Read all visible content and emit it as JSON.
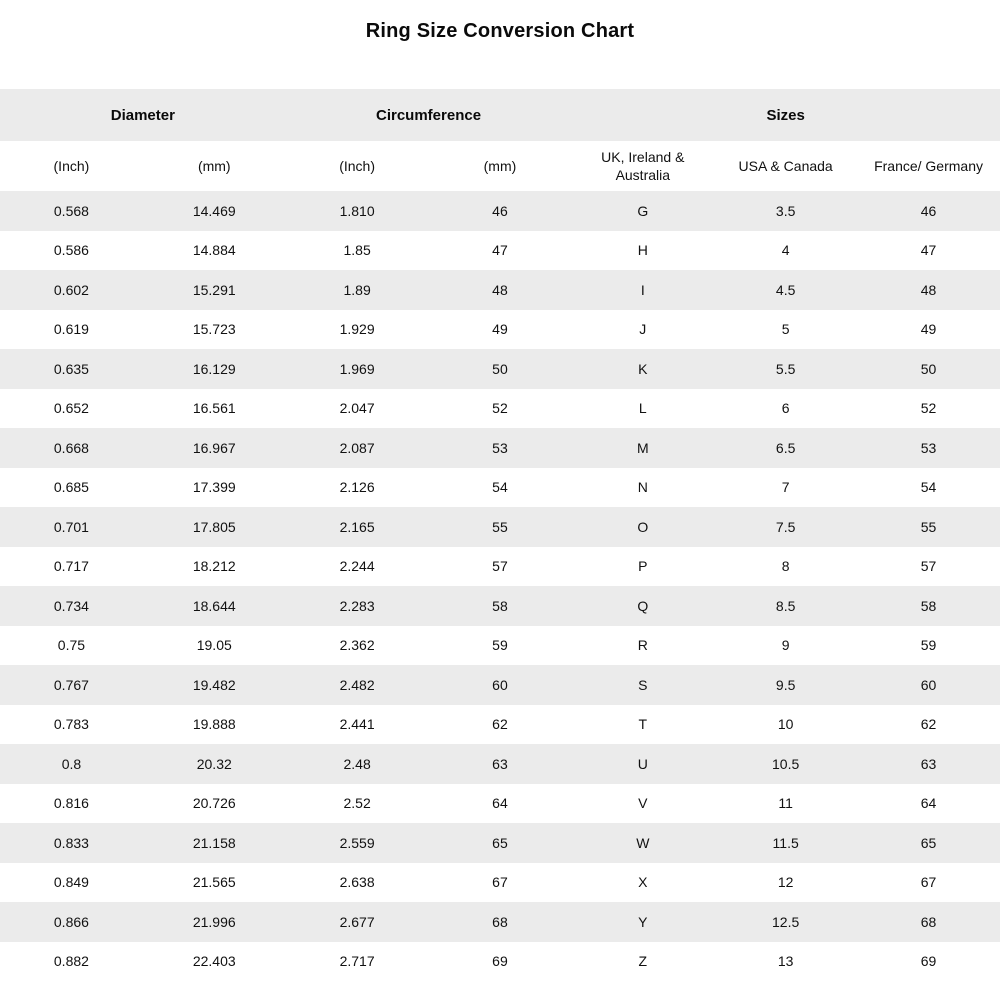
{
  "title": "Ring Size Conversion Chart",
  "colors": {
    "stripe_gray": "#ebebeb",
    "background": "#ffffff",
    "text": "#111111"
  },
  "chart_data": {
    "type": "table",
    "title": "Ring Size Conversion Chart",
    "group_headers": [
      {
        "label": "Diameter",
        "span": 2
      },
      {
        "label": "Circumference",
        "span": 2
      },
      {
        "label": "Sizes",
        "span": 3
      }
    ],
    "columns": [
      "(Inch)",
      "(mm)",
      "(Inch)",
      "(mm)",
      "UK, Ireland & Australia",
      "USA & Canada",
      "France/ Germany"
    ],
    "rows": [
      [
        "0.568",
        "14.469",
        "1.810",
        "46",
        "G",
        "3.5",
        "46"
      ],
      [
        "0.586",
        "14.884",
        "1.85",
        "47",
        "H",
        "4",
        "47"
      ],
      [
        "0.602",
        "15.291",
        "1.89",
        "48",
        "I",
        "4.5",
        "48"
      ],
      [
        "0.619",
        "15.723",
        "1.929",
        "49",
        "J",
        "5",
        "49"
      ],
      [
        "0.635",
        "16.129",
        "1.969",
        "50",
        "K",
        "5.5",
        "50"
      ],
      [
        "0.652",
        "16.561",
        "2.047",
        "52",
        "L",
        "6",
        "52"
      ],
      [
        "0.668",
        "16.967",
        "2.087",
        "53",
        "M",
        "6.5",
        "53"
      ],
      [
        "0.685",
        "17.399",
        "2.126",
        "54",
        "N",
        "7",
        "54"
      ],
      [
        "0.701",
        "17.805",
        "2.165",
        "55",
        "O",
        "7.5",
        "55"
      ],
      [
        "0.717",
        "18.212",
        "2.244",
        "57",
        "P",
        "8",
        "57"
      ],
      [
        "0.734",
        "18.644",
        "2.283",
        "58",
        "Q",
        "8.5",
        "58"
      ],
      [
        "0.75",
        "19.05",
        "2.362",
        "59",
        "R",
        "9",
        "59"
      ],
      [
        "0.767",
        "19.482",
        "2.482",
        "60",
        "S",
        "9.5",
        "60"
      ],
      [
        "0.783",
        "19.888",
        "2.441",
        "62",
        "T",
        "10",
        "62"
      ],
      [
        "0.8",
        "20.32",
        "2.48",
        "63",
        "U",
        "10.5",
        "63"
      ],
      [
        "0.816",
        "20.726",
        "2.52",
        "64",
        "V",
        "11",
        "64"
      ],
      [
        "0.833",
        "21.158",
        "2.559",
        "65",
        "W",
        "11.5",
        "65"
      ],
      [
        "0.849",
        "21.565",
        "2.638",
        "67",
        "X",
        "12",
        "67"
      ],
      [
        "0.866",
        "21.996",
        "2.677",
        "68",
        "Y",
        "12.5",
        "68"
      ],
      [
        "0.882",
        "22.403",
        "2.717",
        "69",
        "Z",
        "13",
        "69"
      ]
    ]
  }
}
